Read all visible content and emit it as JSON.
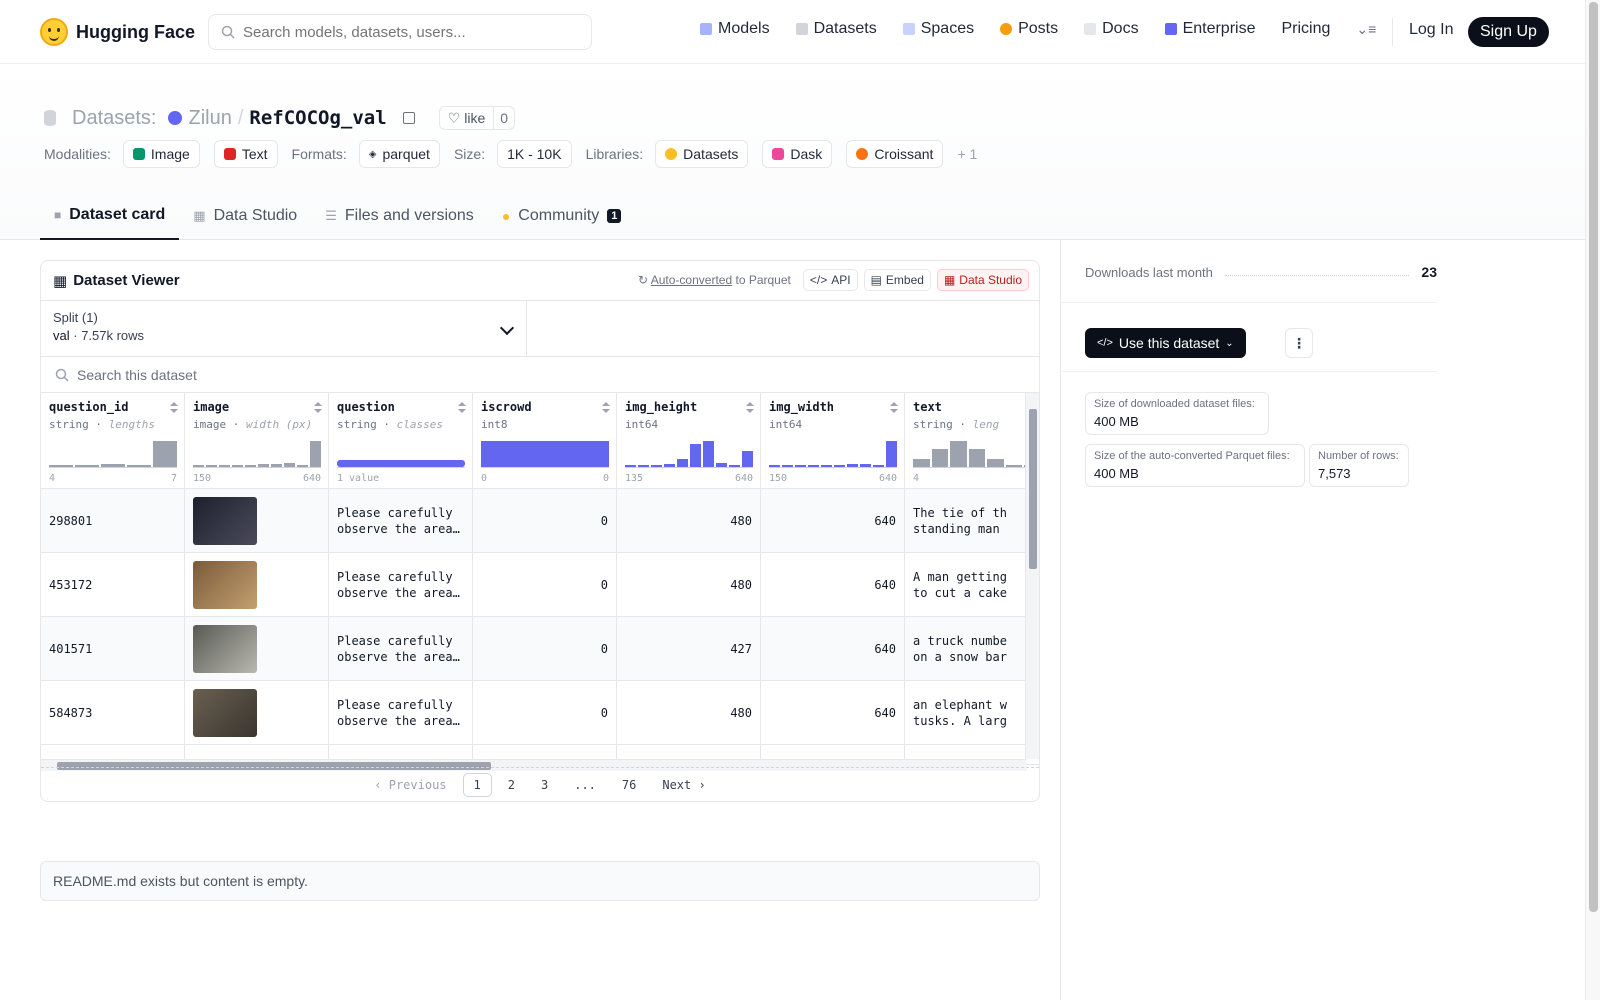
{
  "nav": {
    "brand": "Hugging Face",
    "search_placeholder": "Search models, datasets, users...",
    "links": [
      "Models",
      "Datasets",
      "Spaces",
      "Posts",
      "Docs",
      "Enterprise",
      "Pricing"
    ],
    "login": "Log In",
    "signup": "Sign Up"
  },
  "header": {
    "section": "Datasets:",
    "owner": "Zilun",
    "separator": "/",
    "repo": "RefCOCOg_val",
    "like_label": "like",
    "like_count": "0",
    "modalities_label": "Modalities:",
    "modalities": [
      "Image",
      "Text"
    ],
    "formats_label": "Formats:",
    "formats": [
      "parquet"
    ],
    "size_label": "Size:",
    "size": "1K - 10K",
    "libraries_label": "Libraries:",
    "libraries": [
      "Datasets",
      "Dask",
      "Croissant"
    ],
    "more_libraries": "+ 1"
  },
  "tabs": [
    {
      "label": "Dataset card",
      "active": true
    },
    {
      "label": "Data Studio"
    },
    {
      "label": "Files and versions"
    },
    {
      "label": "Community",
      "badge": "1"
    }
  ],
  "viewer": {
    "title": "Dataset Viewer",
    "autoconverted": "Auto-converted",
    "to_parquet": "to Parquet",
    "api": "API",
    "embed": "Embed",
    "data_studio": "Data Studio",
    "split_label": "Split (1)",
    "split_name": "val",
    "split_rows": "7.57k rows",
    "search_placeholder": "Search this dataset",
    "columns": [
      {
        "name": "question_id",
        "type": "string",
        "stat": "lengths",
        "hist": [
          0.05,
          0,
          0.1,
          0,
          1
        ],
        "min": "4",
        "max": "7",
        "color": "#9ca3af"
      },
      {
        "name": "image",
        "type": "image",
        "stat": "width (px)",
        "hist": [
          0.04,
          0.04,
          0.04,
          0.04,
          0.04,
          0.1,
          0.12,
          0.15,
          0.05,
          1
        ],
        "min": "150",
        "max": "640",
        "color": "#9ca3af"
      },
      {
        "name": "question",
        "type": "string",
        "stat": "classes",
        "hist": [
          0.25
        ],
        "min": "1 value",
        "max": "",
        "color": "#6366f1"
      },
      {
        "name": "iscrowd",
        "type": "int8",
        "stat": "",
        "hist": [
          1
        ],
        "min": "0",
        "max": "0",
        "color": "#6366f1"
      },
      {
        "name": "img_height",
        "type": "int64",
        "stat": "",
        "hist": [
          0.04,
          0.04,
          0.04,
          0.12,
          0.3,
          0.9,
          1,
          0.15,
          0.05,
          0.6
        ],
        "min": "135",
        "max": "640",
        "color": "#6366f1"
      },
      {
        "name": "img_width",
        "type": "int64",
        "stat": "",
        "hist": [
          0.04,
          0.04,
          0.04,
          0.04,
          0.04,
          0.08,
          0.1,
          0.12,
          0.05,
          1
        ],
        "min": "150",
        "max": "640",
        "color": "#6366f1"
      },
      {
        "name": "text",
        "type": "string",
        "stat": "leng",
        "hist": [
          0.3,
          0.7,
          1,
          0.7,
          0.3,
          0.08,
          0.04
        ],
        "min": "4",
        "max": "",
        "color": "#9ca3af"
      }
    ],
    "rows": [
      {
        "question_id": "298801",
        "img": [
          "#1e2030",
          "#4a4a5a"
        ],
        "question": "Please carefully\nobserve the area…",
        "iscrowd": "0",
        "img_height": "480",
        "img_width": "640",
        "text": "The tie of th\nstanding man"
      },
      {
        "question_id": "453172",
        "img": [
          "#7a5a3a",
          "#c4a070"
        ],
        "question": "Please carefully\nobserve the area…",
        "iscrowd": "0",
        "img_height": "480",
        "img_width": "640",
        "text": "A man getting\nto cut a cake"
      },
      {
        "question_id": "401571",
        "img": [
          "#5a5a55",
          "#b8b8b0"
        ],
        "question": "Please carefully\nobserve the area…",
        "iscrowd": "0",
        "img_height": "427",
        "img_width": "640",
        "text": "a truck numbe\non a snow bar"
      },
      {
        "question_id": "584873",
        "img": [
          "#6a6050",
          "#3a3530"
        ],
        "question": "Please carefully\nobserve the area…",
        "iscrowd": "0",
        "img_height": "480",
        "img_width": "640",
        "text": "an elephant w\ntusks. A larg"
      }
    ],
    "pager": {
      "prev": "Previous",
      "pages": [
        "1",
        "2",
        "3",
        "...",
        "76"
      ],
      "current": "1",
      "next": "Next"
    }
  },
  "readme_text": "README.md exists but content is empty.",
  "sidebar": {
    "downloads_label": "Downloads last month",
    "downloads_value": "23",
    "use_button": "Use this dataset",
    "stats": [
      {
        "label": "Size of downloaded dataset files:",
        "value": "400 MB"
      },
      {
        "label": "Size of the auto-converted Parquet files:",
        "value": "400 MB"
      },
      {
        "label": "Number of rows:",
        "value": "7,573"
      }
    ]
  }
}
